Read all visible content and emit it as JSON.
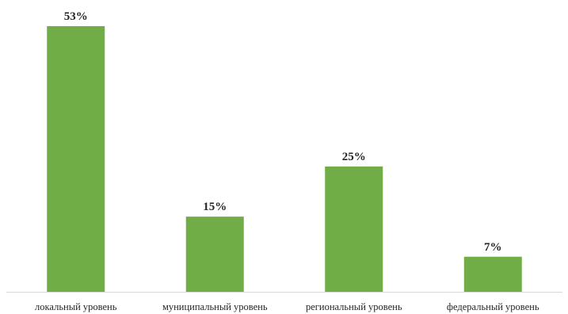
{
  "chart_data": {
    "type": "bar",
    "categories": [
      "локальный уровень",
      "муниципальный уровень",
      "региональный уровень",
      "федеральный уровень"
    ],
    "values": [
      53,
      15,
      25,
      7
    ],
    "value_labels": [
      "53%",
      "15%",
      "25%",
      "7%"
    ],
    "title": "",
    "xlabel": "",
    "ylabel": "",
    "ylim": [
      0,
      53
    ],
    "grid": false,
    "legend": "none",
    "bar_color": "#70ad47"
  }
}
